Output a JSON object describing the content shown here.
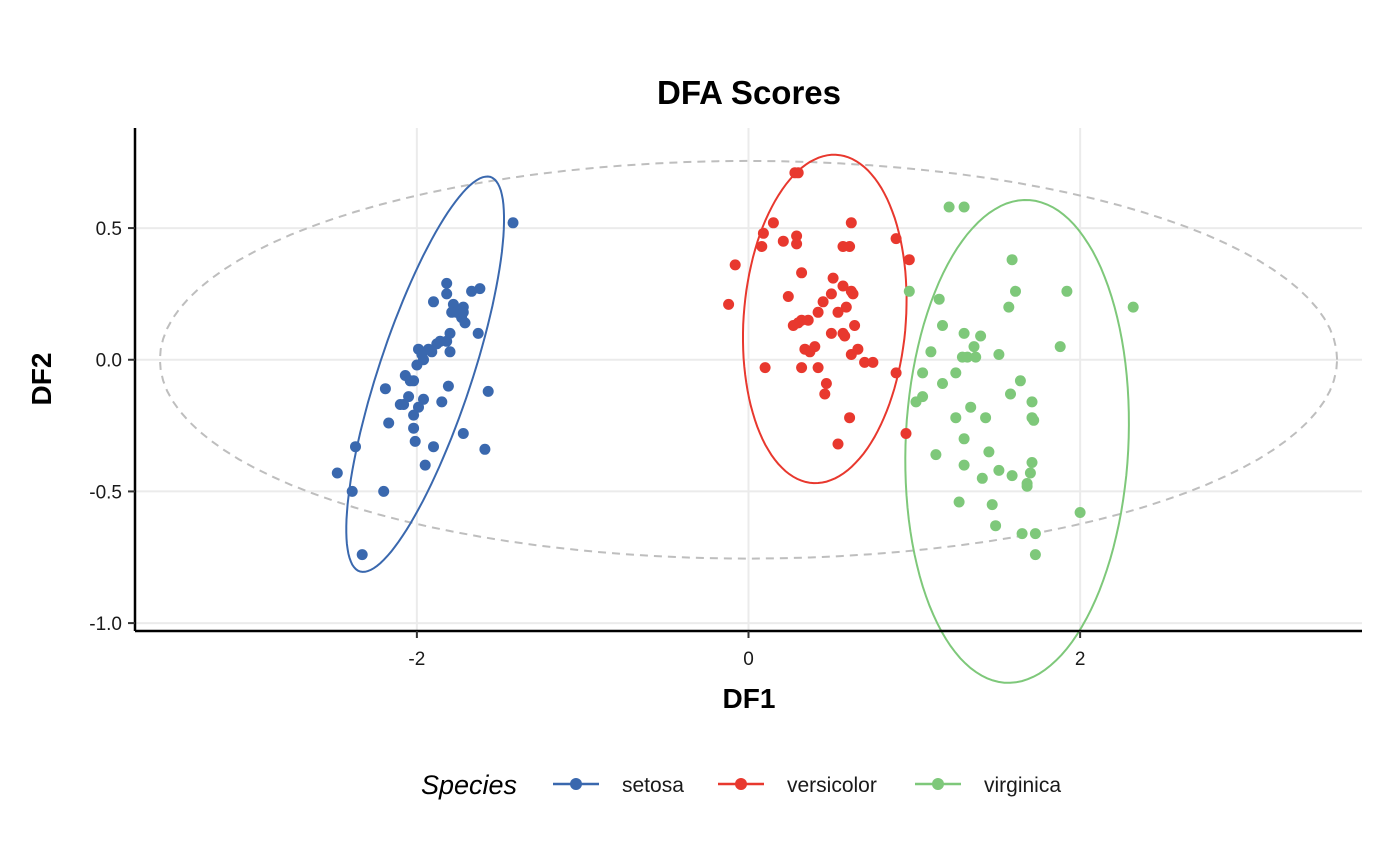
{
  "chart_data": {
    "type": "scatter",
    "title": "DFA Scores",
    "xlabel": "DF1",
    "ylabel": "DF2",
    "xlim": [
      -3.7,
      3.7
    ],
    "ylim": [
      -1.03,
      0.88
    ],
    "x_ticks": [
      -2,
      0,
      2
    ],
    "x_tick_labels": [
      "-2",
      "0",
      "2"
    ],
    "y_ticks": [
      -1.0,
      -0.5,
      0.0,
      0.5
    ],
    "y_tick_labels": [
      "-1.0",
      "-0.5",
      "0.0",
      "0.5"
    ],
    "grid": true,
    "legend": {
      "title": "Species",
      "position": "bottom"
    },
    "overall_ellipse": {
      "center": [
        0.0,
        0.0
      ],
      "rx": 3.55,
      "ry": 0.755,
      "angle": 0,
      "color": "#bebebe",
      "dashed": true
    },
    "series": [
      {
        "name": "setosa",
        "color": "#3a68ae",
        "ellipse": {
          "center": [
            -1.95,
            -0.055
          ],
          "rx": 0.85,
          "ry": 0.26,
          "angle": 60.5
        },
        "points": [
          [
            -1.42,
            0.52
          ],
          [
            -1.62,
            0.27
          ],
          [
            -1.67,
            0.26
          ],
          [
            -1.82,
            0.29
          ],
          [
            -1.82,
            0.25
          ],
          [
            -1.72,
            0.2
          ],
          [
            -1.78,
            0.21
          ],
          [
            -1.79,
            0.18
          ],
          [
            -1.73,
            0.16
          ],
          [
            -1.71,
            0.14
          ],
          [
            -1.63,
            0.1
          ],
          [
            -1.9,
            0.22
          ],
          [
            -1.8,
            0.1
          ],
          [
            -1.82,
            0.07
          ],
          [
            -1.88,
            0.06
          ],
          [
            -1.91,
            0.03
          ],
          [
            -1.96,
            0.0
          ],
          [
            -1.99,
            0.04
          ],
          [
            -1.8,
            0.03
          ],
          [
            -1.86,
            0.07
          ],
          [
            -2.0,
            -0.02
          ],
          [
            -2.02,
            -0.08
          ],
          [
            -2.07,
            -0.06
          ],
          [
            -2.19,
            -0.11
          ],
          [
            -1.81,
            -0.1
          ],
          [
            -1.57,
            -0.12
          ],
          [
            -1.96,
            -0.15
          ],
          [
            -1.85,
            -0.16
          ],
          [
            -1.99,
            -0.18
          ],
          [
            -2.05,
            -0.14
          ],
          [
            -2.08,
            -0.17
          ],
          [
            -2.1,
            -0.17
          ],
          [
            -2.02,
            -0.21
          ],
          [
            -2.17,
            -0.24
          ],
          [
            -2.02,
            -0.26
          ],
          [
            -2.01,
            -0.31
          ],
          [
            -1.9,
            -0.33
          ],
          [
            -1.72,
            -0.28
          ],
          [
            -1.59,
            -0.34
          ],
          [
            -2.37,
            -0.33
          ],
          [
            -1.95,
            -0.4
          ],
          [
            -2.48,
            -0.43
          ],
          [
            -2.39,
            -0.5
          ],
          [
            -2.2,
            -0.5
          ],
          [
            -2.33,
            -0.74
          ],
          [
            -1.76,
            0.18
          ],
          [
            -1.72,
            0.18
          ],
          [
            -1.93,
            0.04
          ],
          [
            -2.04,
            -0.08
          ],
          [
            -1.97,
            0.02
          ]
        ]
      },
      {
        "name": "versicolor",
        "color": "#e8382e",
        "ellipse": {
          "center": [
            0.46,
            0.155
          ],
          "rx": 0.485,
          "ry": 0.63,
          "angle": -13
        },
        "points": [
          [
            0.3,
            0.71
          ],
          [
            0.28,
            0.71
          ],
          [
            0.15,
            0.52
          ],
          [
            0.62,
            0.52
          ],
          [
            0.09,
            0.48
          ],
          [
            0.29,
            0.47
          ],
          [
            0.21,
            0.45
          ],
          [
            0.29,
            0.44
          ],
          [
            0.08,
            0.43
          ],
          [
            0.57,
            0.43
          ],
          [
            0.61,
            0.43
          ],
          [
            0.89,
            0.46
          ],
          [
            0.97,
            0.38
          ],
          [
            -0.08,
            0.36
          ],
          [
            0.51,
            0.31
          ],
          [
            0.32,
            0.33
          ],
          [
            0.57,
            0.28
          ],
          [
            0.62,
            0.26
          ],
          [
            0.63,
            0.25
          ],
          [
            0.5,
            0.25
          ],
          [
            0.24,
            0.24
          ],
          [
            0.45,
            0.22
          ],
          [
            -0.12,
            0.21
          ],
          [
            0.59,
            0.2
          ],
          [
            0.42,
            0.18
          ],
          [
            0.54,
            0.18
          ],
          [
            0.32,
            0.15
          ],
          [
            0.36,
            0.15
          ],
          [
            0.3,
            0.14
          ],
          [
            0.27,
            0.13
          ],
          [
            0.64,
            0.13
          ],
          [
            0.5,
            0.1
          ],
          [
            0.58,
            0.09
          ],
          [
            0.34,
            0.04
          ],
          [
            0.37,
            0.03
          ],
          [
            0.66,
            0.04
          ],
          [
            0.62,
            0.02
          ],
          [
            0.7,
            -0.01
          ],
          [
            0.75,
            -0.01
          ],
          [
            0.1,
            -0.03
          ],
          [
            0.32,
            -0.03
          ],
          [
            0.42,
            -0.03
          ],
          [
            0.89,
            -0.05
          ],
          [
            0.47,
            -0.09
          ],
          [
            0.46,
            -0.13
          ],
          [
            0.61,
            -0.22
          ],
          [
            0.95,
            -0.28
          ],
          [
            0.54,
            -0.32
          ],
          [
            0.57,
            0.1
          ],
          [
            0.4,
            0.05
          ]
        ]
      },
      {
        "name": "virginica",
        "color": "#7ec87a",
        "ellipse": {
          "center": [
            1.62,
            -0.31
          ],
          "rx": 0.67,
          "ry": 0.92,
          "angle": -7
        },
        "points": [
          [
            1.21,
            0.58
          ],
          [
            1.3,
            0.58
          ],
          [
            1.59,
            0.38
          ],
          [
            1.92,
            0.26
          ],
          [
            2.32,
            0.2
          ],
          [
            0.97,
            0.26
          ],
          [
            1.15,
            0.23
          ],
          [
            1.61,
            0.26
          ],
          [
            1.57,
            0.2
          ],
          [
            1.17,
            0.13
          ],
          [
            1.3,
            0.1
          ],
          [
            1.4,
            0.09
          ],
          [
            1.36,
            0.05
          ],
          [
            1.1,
            0.03
          ],
          [
            1.88,
            0.05
          ],
          [
            1.51,
            0.02
          ],
          [
            1.29,
            0.01
          ],
          [
            1.32,
            0.01
          ],
          [
            1.37,
            0.01
          ],
          [
            1.25,
            -0.05
          ],
          [
            1.05,
            -0.05
          ],
          [
            1.17,
            -0.09
          ],
          [
            1.64,
            -0.08
          ],
          [
            1.58,
            -0.13
          ],
          [
            1.05,
            -0.14
          ],
          [
            1.01,
            -0.16
          ],
          [
            1.71,
            -0.16
          ],
          [
            1.34,
            -0.18
          ],
          [
            1.25,
            -0.22
          ],
          [
            1.43,
            -0.22
          ],
          [
            1.71,
            -0.22
          ],
          [
            1.72,
            -0.23
          ],
          [
            1.3,
            -0.3
          ],
          [
            1.45,
            -0.35
          ],
          [
            1.13,
            -0.36
          ],
          [
            1.71,
            -0.39
          ],
          [
            1.3,
            -0.4
          ],
          [
            1.59,
            -0.44
          ],
          [
            1.41,
            -0.45
          ],
          [
            1.7,
            -0.43
          ],
          [
            1.68,
            -0.47
          ],
          [
            1.68,
            -0.48
          ],
          [
            1.27,
            -0.54
          ],
          [
            1.47,
            -0.55
          ],
          [
            2.0,
            -0.58
          ],
          [
            1.49,
            -0.63
          ],
          [
            1.65,
            -0.66
          ],
          [
            1.73,
            -0.66
          ],
          [
            1.73,
            -0.74
          ],
          [
            1.51,
            -0.42
          ]
        ]
      }
    ]
  }
}
